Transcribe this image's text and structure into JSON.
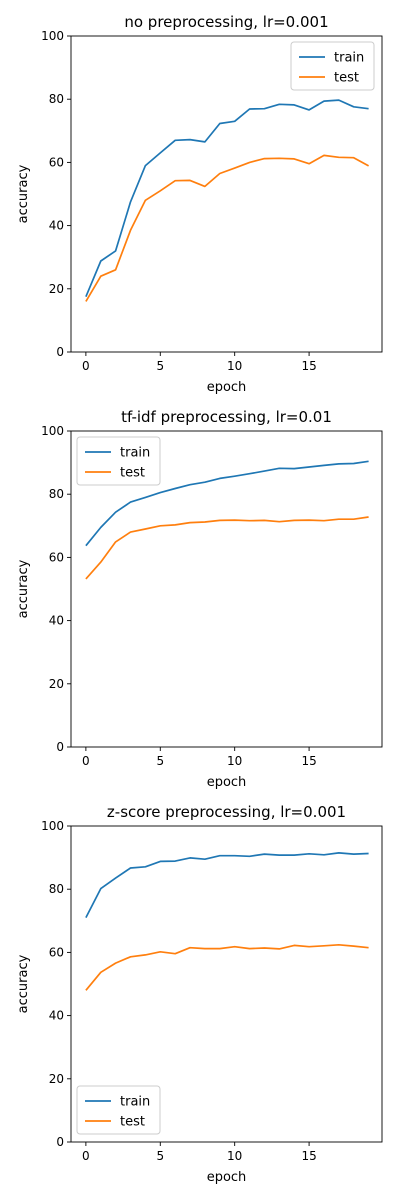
{
  "chart_data": [
    {
      "type": "line",
      "title": "no preprocessing, lr=0.001",
      "xlabel": "epoch",
      "ylabel": "accuracy",
      "xlim": [
        -1,
        19.9
      ],
      "ylim": [
        0,
        100
      ],
      "xticks": [
        0,
        5,
        10,
        15
      ],
      "yticks": [
        0,
        20,
        40,
        60,
        80,
        100
      ],
      "legend_position": "top-right",
      "x": [
        0,
        1,
        2,
        3,
        4,
        5,
        6,
        7,
        8,
        9,
        10,
        11,
        12,
        13,
        14,
        15,
        16,
        17,
        18,
        19
      ],
      "series": [
        {
          "name": "train",
          "color": "#1f77b4",
          "values": [
            17.5,
            28.8,
            32.0,
            47.5,
            59.0,
            63.0,
            67.0,
            67.2,
            66.5,
            72.3,
            73.0,
            76.9,
            77.0,
            78.4,
            78.2,
            76.6,
            79.4,
            79.7,
            77.6,
            77.0
          ]
        },
        {
          "name": "test",
          "color": "#ff7f0e",
          "values": [
            16.0,
            24.0,
            26.0,
            38.5,
            48.0,
            51.0,
            54.2,
            54.3,
            52.4,
            56.5,
            58.2,
            60.0,
            61.2,
            61.3,
            61.1,
            59.6,
            62.2,
            61.6,
            61.5,
            58.9
          ]
        }
      ]
    },
    {
      "type": "line",
      "title": "tf-idf preprocessing, lr=0.01",
      "xlabel": "epoch",
      "ylabel": "accuracy",
      "xlim": [
        -1,
        19.9
      ],
      "ylim": [
        0,
        100
      ],
      "xticks": [
        0,
        5,
        10,
        15
      ],
      "yticks": [
        0,
        20,
        40,
        60,
        80,
        100
      ],
      "legend_position": "top-left",
      "x": [
        0,
        1,
        2,
        3,
        4,
        5,
        6,
        7,
        8,
        9,
        10,
        11,
        12,
        13,
        14,
        15,
        16,
        17,
        18,
        19
      ],
      "series": [
        {
          "name": "train",
          "color": "#1f77b4",
          "values": [
            63.7,
            69.5,
            74.3,
            77.5,
            79.0,
            80.5,
            81.8,
            83.0,
            83.8,
            85.0,
            85.7,
            86.5,
            87.3,
            88.2,
            88.1,
            88.6,
            89.1,
            89.6,
            89.7,
            90.4
          ]
        },
        {
          "name": "test",
          "color": "#ff7f0e",
          "values": [
            53.2,
            58.5,
            64.9,
            68.0,
            69.0,
            70.0,
            70.3,
            71.0,
            71.2,
            71.7,
            71.8,
            71.6,
            71.7,
            71.3,
            71.7,
            71.8,
            71.6,
            72.1,
            72.1,
            72.8
          ]
        }
      ]
    },
    {
      "type": "line",
      "title": "z-score preprocessing, lr=0.001",
      "xlabel": "epoch",
      "ylabel": "accuracy",
      "xlim": [
        -1,
        19.9
      ],
      "ylim": [
        0,
        100
      ],
      "xticks": [
        0,
        5,
        10,
        15
      ],
      "yticks": [
        0,
        20,
        40,
        60,
        80,
        100
      ],
      "legend_position": "bottom-left",
      "x": [
        0,
        1,
        2,
        3,
        4,
        5,
        6,
        7,
        8,
        9,
        10,
        11,
        12,
        13,
        14,
        15,
        16,
        17,
        18,
        19
      ],
      "series": [
        {
          "name": "train",
          "color": "#1f77b4",
          "values": [
            71.0,
            80.2,
            83.5,
            86.7,
            87.1,
            88.8,
            88.9,
            89.9,
            89.5,
            90.6,
            90.6,
            90.4,
            91.1,
            90.8,
            90.8,
            91.2,
            90.9,
            91.5,
            91.1,
            91.3
          ]
        },
        {
          "name": "test",
          "color": "#ff7f0e",
          "values": [
            48.0,
            53.7,
            56.6,
            58.6,
            59.2,
            60.2,
            59.6,
            61.5,
            61.2,
            61.2,
            61.8,
            61.2,
            61.4,
            61.1,
            62.2,
            61.8,
            62.1,
            62.4,
            62.0,
            61.5
          ]
        }
      ]
    }
  ]
}
